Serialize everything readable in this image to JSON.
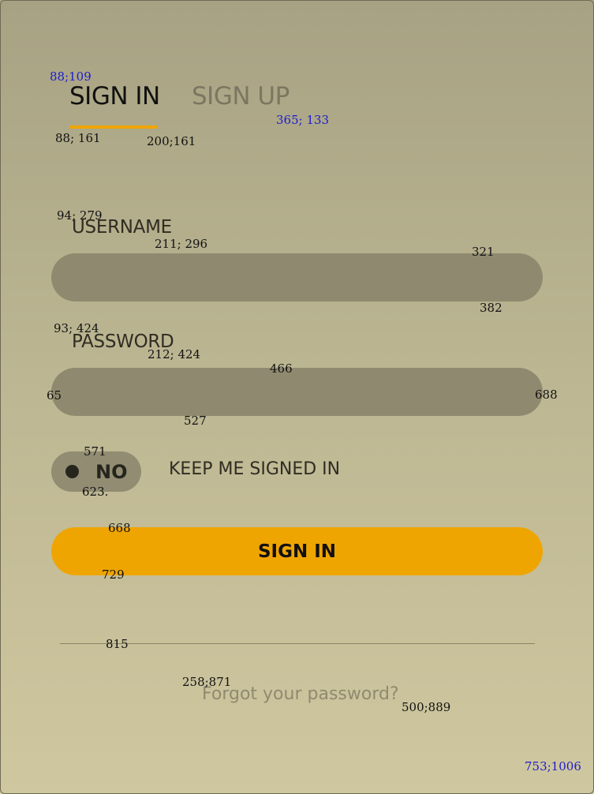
{
  "tabs": {
    "sign_in": "SIGN IN",
    "sign_up": "SIGN UP"
  },
  "form": {
    "username_label": "USERNAME",
    "username_value": "",
    "password_label": "PASSWORD",
    "password_value": "",
    "toggle_state": "NO",
    "keep_signed_in_label": "KEEP ME SIGNED IN",
    "submit_label": "SIGN IN",
    "forgot_link": "Forgot your password?"
  },
  "annotations": [
    "88;109",
    "365; 133",
    "88; 161",
    "200;161",
    "94; 279",
    "211; 296",
    "321",
    "382",
    "93; 424",
    "212; 424",
    "466",
    "65",
    "688",
    "527",
    "571",
    "623.",
    "668",
    "729",
    "815",
    "258;871",
    "500;889",
    "753;1006"
  ],
  "colors": {
    "accent": "#efa501",
    "input_bg": "#8f8a6f",
    "annotation_blue": "#1c1ccf"
  }
}
